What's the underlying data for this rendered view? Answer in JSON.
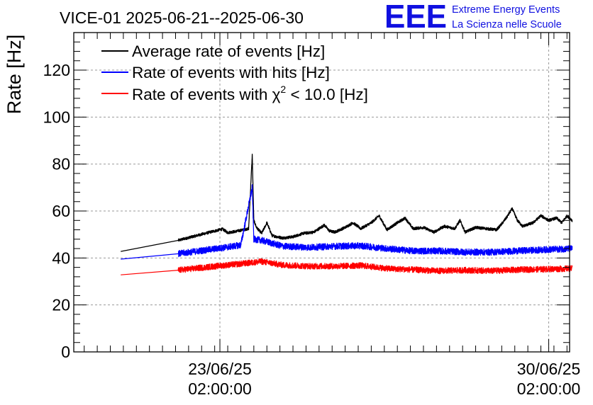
{
  "chart_data": {
    "type": "line",
    "title": "VICE-01 2025-06-21--2025-06-30",
    "ylabel": "Rate [Hz]",
    "xlabel": "",
    "ylim": [
      0,
      136
    ],
    "xlim_days": [
      0,
      9.5
    ],
    "y_ticks": [
      0,
      20,
      40,
      60,
      80,
      100,
      120
    ],
    "x_ticks": [
      {
        "day": 2.8,
        "date": "23/06/25",
        "time": "02:00:00"
      },
      {
        "day": 9.1,
        "date": "30/06/25",
        "time": "02:00:00"
      }
    ],
    "grid": true,
    "legend": {
      "position": "top-left",
      "entries": [
        {
          "label": "Average rate of events [Hz]",
          "color": "#000000"
        },
        {
          "label": "Rate of events with hits [Hz]",
          "color": "#0000ff"
        },
        {
          "label_prefix": "Rate of events with ",
          "symbol": "χ",
          "sup": "2",
          "label_suffix": " < 10.0 [Hz]",
          "color": "#ff0000"
        }
      ]
    },
    "series": [
      {
        "name": "Average rate of events [Hz]",
        "color": "#000000",
        "noise": 0.6,
        "points": [
          [
            0.9,
            42.8
          ],
          [
            2.0,
            47.5
          ],
          [
            2.7,
            51.5
          ],
          [
            2.85,
            52.3
          ],
          [
            2.95,
            50.8
          ],
          [
            3.1,
            51.3
          ],
          [
            3.35,
            52.5
          ],
          [
            3.42,
            84
          ],
          [
            3.45,
            56
          ],
          [
            3.5,
            53
          ],
          [
            3.6,
            50.5
          ],
          [
            3.7,
            55
          ],
          [
            3.8,
            49.5
          ],
          [
            4.0,
            48.5
          ],
          [
            4.2,
            49
          ],
          [
            4.4,
            50.5
          ],
          [
            4.6,
            51
          ],
          [
            4.8,
            54
          ],
          [
            4.9,
            51.5
          ],
          [
            5.0,
            51
          ],
          [
            5.2,
            53
          ],
          [
            5.35,
            55
          ],
          [
            5.5,
            52.5
          ],
          [
            5.7,
            55
          ],
          [
            5.85,
            58
          ],
          [
            6.0,
            52
          ],
          [
            6.2,
            55
          ],
          [
            6.35,
            57
          ],
          [
            6.5,
            52.5
          ],
          [
            6.7,
            53
          ],
          [
            6.9,
            51
          ],
          [
            7.1,
            53.5
          ],
          [
            7.3,
            52.5
          ],
          [
            7.4,
            56
          ],
          [
            7.5,
            51
          ],
          [
            7.7,
            53
          ],
          [
            7.9,
            52.5
          ],
          [
            8.1,
            52
          ],
          [
            8.2,
            54.5
          ],
          [
            8.3,
            57.5
          ],
          [
            8.4,
            61
          ],
          [
            8.5,
            56
          ],
          [
            8.6,
            53.5
          ],
          [
            8.8,
            55
          ],
          [
            8.95,
            58
          ],
          [
            9.1,
            56
          ],
          [
            9.25,
            57
          ],
          [
            9.35,
            55
          ],
          [
            9.45,
            58
          ],
          [
            9.55,
            56
          ]
        ]
      },
      {
        "name": "Rate of events with hits [Hz]",
        "color": "#0000ff",
        "noise": 1.4,
        "points": [
          [
            0.9,
            39.5
          ],
          [
            2.0,
            41.8
          ],
          [
            2.85,
            44.3
          ],
          [
            3.2,
            45.5
          ],
          [
            3.42,
            70
          ],
          [
            3.45,
            48
          ],
          [
            3.6,
            47.5
          ],
          [
            4.0,
            45
          ],
          [
            4.5,
            44.5
          ],
          [
            5.0,
            45
          ],
          [
            5.5,
            45.2
          ],
          [
            6.0,
            44
          ],
          [
            6.5,
            43
          ],
          [
            7.0,
            43
          ],
          [
            7.5,
            42.5
          ],
          [
            8.0,
            42.5
          ],
          [
            8.5,
            43
          ],
          [
            9.0,
            43.5
          ],
          [
            9.55,
            44
          ]
        ]
      },
      {
        "name": "Rate of events with χ2 < 10.0 [Hz]",
        "color": "#ff0000",
        "noise": 1.3,
        "points": [
          [
            0.9,
            32.8
          ],
          [
            2.0,
            34.8
          ],
          [
            2.85,
            36.8
          ],
          [
            3.2,
            37.5
          ],
          [
            3.6,
            38.5
          ],
          [
            4.0,
            37
          ],
          [
            4.5,
            36.5
          ],
          [
            5.0,
            36.5
          ],
          [
            5.5,
            36.8
          ],
          [
            6.0,
            35.5
          ],
          [
            6.5,
            35
          ],
          [
            7.0,
            34.5
          ],
          [
            7.5,
            34.8
          ],
          [
            8.0,
            34.5
          ],
          [
            8.5,
            35
          ],
          [
            9.0,
            35.2
          ],
          [
            9.55,
            35.5
          ]
        ]
      }
    ]
  },
  "logo": {
    "mark": "EEE",
    "line1": "Extreme Energy Events",
    "line2": "La Scienza nelle Scuole",
    "color": "#1010e0"
  }
}
